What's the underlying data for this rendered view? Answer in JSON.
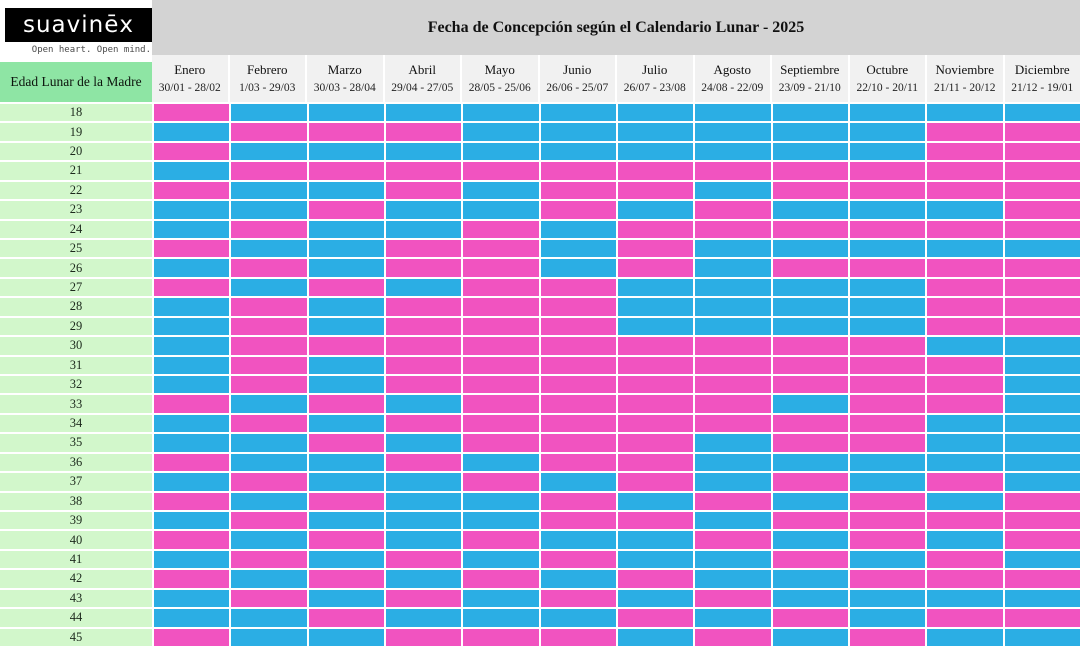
{
  "brand": {
    "logo_text": "suavinēx",
    "tagline": "Open heart. Open mind."
  },
  "chart_data": {
    "type": "heatmap",
    "title": "Fecha de Concepción según el Calendario Lunar - 2025",
    "row_header_label": "Edad Lunar de la Madre",
    "columns": [
      {
        "month": "Enero",
        "range": "30/01 - 28/02"
      },
      {
        "month": "Febrero",
        "range": "1/03 - 29/03"
      },
      {
        "month": "Marzo",
        "range": "30/03 - 28/04"
      },
      {
        "month": "Abril",
        "range": "29/04 - 27/05"
      },
      {
        "month": "Mayo",
        "range": "28/05 - 25/06"
      },
      {
        "month": "Junio",
        "range": "26/06 - 25/07"
      },
      {
        "month": "Julio",
        "range": "26/07 - 23/08"
      },
      {
        "month": "Agosto",
        "range": "24/08 - 22/09"
      },
      {
        "month": "Septiembre",
        "range": "23/09 - 21/10"
      },
      {
        "month": "Octubre",
        "range": "22/10 - 20/11"
      },
      {
        "month": "Noviembre",
        "range": "21/11 - 20/12"
      },
      {
        "month": "Diciembre",
        "range": "21/12 - 19/01"
      }
    ],
    "ages": [
      18,
      19,
      20,
      21,
      22,
      23,
      24,
      25,
      26,
      27,
      28,
      29,
      30,
      31,
      32,
      33,
      34,
      35,
      36,
      37,
      38,
      39,
      40,
      41,
      42,
      43,
      44,
      45
    ],
    "cell_colors": {
      "P": "#F153C0",
      "B": "#2BAEE4"
    },
    "matrix": [
      "PBBBBBBBBBBB",
      "BPPPBBBBBBPP",
      "PBBBBBBBBBPP",
      "BPPPPPPPPPPP",
      "PBBPBPPBPPPP",
      "BBPBBPBPBBBP",
      "BPBBPBPPPPPP",
      "PBBPPBPBBBBB",
      "BPBPPBPBPPPP",
      "PBPBPPBBBBPP",
      "BPBPPPBBBBPP",
      "BPBPPPBBBBPP",
      "BPPPPPPPPPBB",
      "BPBPPPPPPPPB",
      "BPBPPPPPPPPB",
      "PBPBPPPPBPPB",
      "BPBPPPPPPPBB",
      "BBPBPPPBPPBB",
      "PBBPBPPBBBBB",
      "BPBBPBPBPBPB",
      "PBPBBPBPBPBP",
      "BPBBBPPBPPPP",
      "PBPBPBBPBPBP",
      "BPBPBPBBPBPB",
      "PBPBPBPBBPPP",
      "BPBPBPBPBBBB",
      "BBPBBBPBPBPP",
      "PBBPPPBPBPBB"
    ],
    "ui_colors": {
      "pink": "#F153C0",
      "blue": "#2BAEE4",
      "age_label_green": "#D2F7CB",
      "row_header_green": "#8EE5A4",
      "title_band_gray": "#D3D3D3",
      "month_band_gray": "#F1F1F1",
      "gridline_white": "#FFFFFF",
      "logo_black": "#000000"
    }
  }
}
